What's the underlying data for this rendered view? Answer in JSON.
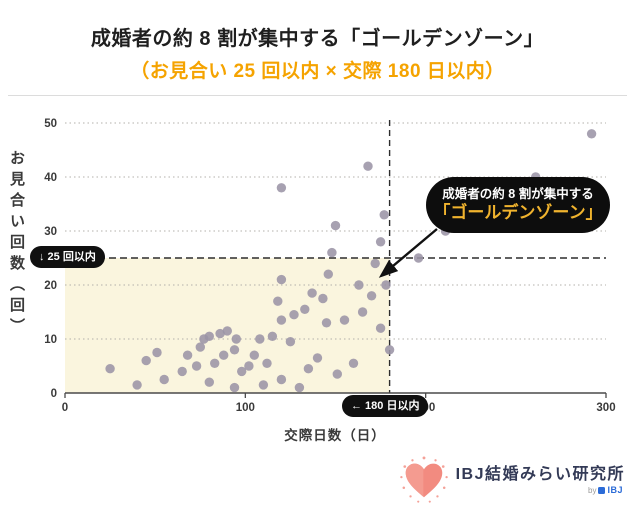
{
  "header": {
    "title": "成婚者の約 8 割が集中する「ゴールデンゾーン」",
    "subtitle": "（お見合い 25 回以内 × 交際 180 日以内）",
    "title_color": "#1f1f1f",
    "subtitle_color": "#F5A300"
  },
  "chart_data": {
    "type": "scatter",
    "title": "成婚者の約 8 割が集中する「ゴールデンゾーン」",
    "xlabel": "交際日数（日）",
    "ylabel": "お見合い回数（回）",
    "xlim": [
      0,
      300
    ],
    "ylim": [
      0,
      50
    ],
    "x_ticks": [
      0,
      100,
      200,
      300
    ],
    "y_ticks": [
      0,
      10,
      20,
      30,
      40,
      50
    ],
    "grid": "dotted-horizontal",
    "legend": "none",
    "dot_color": "#9B94A6",
    "golden_zone": {
      "x_max_days": 180,
      "y_max_count": 25,
      "fill": "#FAF5DE"
    },
    "thresholds": {
      "x_value": 180,
      "x_label": "← 180 日以内",
      "y_value": 25,
      "y_label": "↓ 25 回以内"
    },
    "annotation": {
      "line1": "成婚者の約 8 割が集中する",
      "line2": "「ゴールデンゾーン」",
      "line2_color": "#F0B32E",
      "target_point": [
        175,
        21
      ]
    },
    "points": [
      [
        25,
        4.5
      ],
      [
        40,
        1.5
      ],
      [
        45,
        6
      ],
      [
        51,
        7.5
      ],
      [
        55,
        2.5
      ],
      [
        65,
        4
      ],
      [
        68,
        7
      ],
      [
        73,
        5
      ],
      [
        75,
        8.5
      ],
      [
        77,
        10
      ],
      [
        80,
        2
      ],
      [
        80,
        10.5
      ],
      [
        83,
        5.5
      ],
      [
        86,
        11
      ],
      [
        88,
        7
      ],
      [
        90,
        11.5
      ],
      [
        94,
        1
      ],
      [
        94,
        8
      ],
      [
        95,
        10
      ],
      [
        98,
        4
      ],
      [
        102,
        5
      ],
      [
        105,
        7
      ],
      [
        108,
        10
      ],
      [
        110,
        1.5
      ],
      [
        112,
        5.5
      ],
      [
        115,
        10.5
      ],
      [
        118,
        17
      ],
      [
        120,
        2.5
      ],
      [
        120,
        13.5
      ],
      [
        120,
        21
      ],
      [
        120,
        38
      ],
      [
        125,
        9.5
      ],
      [
        127,
        14.5
      ],
      [
        130,
        1
      ],
      [
        133,
        15.5
      ],
      [
        135,
        4.5
      ],
      [
        137,
        18.5
      ],
      [
        140,
        6.5
      ],
      [
        143,
        17.5
      ],
      [
        145,
        13
      ],
      [
        146,
        22
      ],
      [
        148,
        26
      ],
      [
        150,
        31
      ],
      [
        151,
        3.5
      ],
      [
        155,
        13.5
      ],
      [
        160,
        5.5
      ],
      [
        163,
        20
      ],
      [
        165,
        15
      ],
      [
        168,
        42
      ],
      [
        170,
        18
      ],
      [
        172,
        24
      ],
      [
        175,
        12
      ],
      [
        175,
        28
      ],
      [
        177,
        33
      ],
      [
        178,
        20
      ],
      [
        180,
        8
      ],
      [
        196,
        25
      ],
      [
        211,
        30
      ],
      [
        261,
        40
      ],
      [
        292,
        48
      ]
    ]
  },
  "footer": {
    "brand": "IBJ結婚みらい研究所",
    "byline_prefix": "by",
    "byline_brand": "IBJ",
    "heart_color": "#F28B80"
  }
}
